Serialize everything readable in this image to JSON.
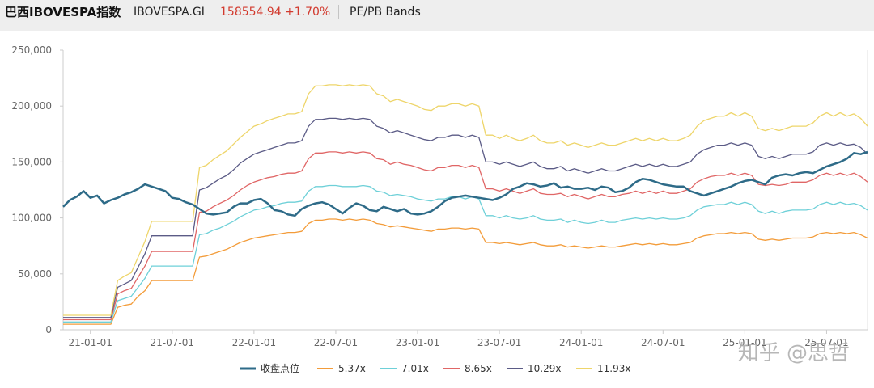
{
  "header": {
    "name": "巴西IBOVESPA指数",
    "code": "IBOVESPA.GI",
    "price": "158554.94",
    "change": "+1.70%",
    "bands_label": "PE/PB Bands"
  },
  "watermark": "知乎 @思哲",
  "chart_data": {
    "type": "line",
    "title": "PE/PB Bands",
    "ylim": [
      0,
      250000
    ],
    "yticks": [
      0,
      50000,
      100000,
      150000,
      200000,
      250000
    ],
    "ytick_labels": [
      "0",
      "50,000",
      "100,000",
      "150,000",
      "200,000",
      "250,000"
    ],
    "xlim": [
      0,
      59
    ],
    "x_unit": "months since 2020-11",
    "xticks": [
      {
        "x": 2,
        "label": "21-01-01"
      },
      {
        "x": 8,
        "label": "21-07-01"
      },
      {
        "x": 14,
        "label": "22-01-01"
      },
      {
        "x": 20,
        "label": "22-07-01"
      },
      {
        "x": 26,
        "label": "23-01-01"
      },
      {
        "x": 32,
        "label": "23-07-01"
      },
      {
        "x": 38,
        "label": "24-01-01"
      },
      {
        "x": 44,
        "label": "24-07-01"
      },
      {
        "x": 50,
        "label": "25-01-01"
      },
      {
        "x": 56,
        "label": "25-07-01"
      }
    ],
    "x": [
      0,
      0.5,
      1,
      1.5,
      2,
      2.5,
      3,
      3.5,
      4,
      4.5,
      5,
      5.5,
      6,
      6.5,
      7,
      7.5,
      8,
      8.5,
      9,
      9.5,
      10,
      10.5,
      11,
      11.5,
      12,
      12.5,
      13,
      13.5,
      14,
      14.5,
      15,
      15.5,
      16,
      16.5,
      17,
      17.5,
      18,
      18.5,
      19,
      19.5,
      20,
      20.5,
      21,
      21.5,
      22,
      22.5,
      23,
      23.5,
      24,
      24.5,
      25,
      25.5,
      26,
      26.5,
      27,
      27.5,
      28,
      28.5,
      29,
      29.5,
      30,
      30.5,
      31,
      31.5,
      32,
      32.5,
      33,
      33.5,
      34,
      34.5,
      35,
      35.5,
      36,
      36.5,
      37,
      37.5,
      38,
      38.5,
      39,
      39.5,
      40,
      40.5,
      41,
      41.5,
      42,
      42.5,
      43,
      43.5,
      44,
      44.5,
      45,
      45.5,
      46,
      46.5,
      47,
      47.5,
      48,
      48.5,
      49,
      49.5,
      50,
      50.5,
      51,
      51.5,
      52,
      52.5,
      53,
      53.5,
      54,
      54.5,
      55,
      55.5,
      56,
      56.5,
      57,
      57.5,
      58,
      58.5,
      59
    ],
    "series": [
      {
        "name": "收盘点位",
        "color": "#2e6b88",
        "width": 2.5,
        "values": [
          110000,
          116000,
          119000,
          124000,
          118000,
          120000,
          113000,
          116000,
          118000,
          121000,
          123000,
          126000,
          130000,
          128000,
          126000,
          124000,
          118000,
          117000,
          114000,
          112000,
          108000,
          104000,
          103000,
          104000,
          105000,
          110000,
          113000,
          113000,
          116000,
          117000,
          113000,
          107000,
          106000,
          103000,
          102000,
          108000,
          111000,
          113000,
          114000,
          112000,
          108000,
          104000,
          109000,
          113000,
          111000,
          107000,
          106000,
          110000,
          108000,
          106000,
          108000,
          104000,
          103000,
          104000,
          106000,
          110000,
          115000,
          118000,
          119000,
          120000,
          119000,
          118000,
          117000,
          116000,
          118000,
          121000,
          126000,
          128000,
          131000,
          130000,
          128000,
          129000,
          131000,
          127000,
          128000,
          126000,
          126000,
          127000,
          125000,
          128000,
          127000,
          123000,
          124000,
          127000,
          132000,
          135000,
          134000,
          132000,
          130000,
          129000,
          128000,
          128000,
          124000,
          122000,
          120000,
          122000,
          124000,
          126000,
          128000,
          131000,
          133000,
          134000,
          132000,
          130000,
          136000,
          138000,
          139000,
          138000,
          140000,
          141000,
          140000,
          143000,
          146000,
          148000,
          150000,
          153000,
          158000,
          157000,
          159000
        ]
      },
      {
        "name": "5.37x",
        "color": "#f39c3a",
        "width": 1.3,
        "values": [
          5000,
          5000,
          5000,
          5000,
          5000,
          5000,
          5000,
          5000,
          20000,
          22000,
          23000,
          30000,
          35000,
          44000,
          44000,
          44000,
          44000,
          44000,
          44000,
          44000,
          65000,
          66000,
          68000,
          70000,
          72000,
          75000,
          78000,
          80000,
          82000,
          83000,
          84000,
          85000,
          86000,
          87000,
          87000,
          88000,
          95000,
          98000,
          98000,
          99000,
          99000,
          98000,
          99000,
          98000,
          99000,
          98000,
          95000,
          94000,
          92000,
          93000,
          92000,
          91000,
          90000,
          89000,
          88000,
          90000,
          90000,
          91000,
          91000,
          90000,
          91000,
          90000,
          78000,
          78000,
          77000,
          78000,
          77000,
          76000,
          77000,
          78000,
          76000,
          75000,
          75000,
          76000,
          74000,
          75000,
          74000,
          73000,
          74000,
          75000,
          74000,
          74000,
          75000,
          76000,
          77000,
          76000,
          77000,
          76000,
          77000,
          76000,
          76000,
          77000,
          78000,
          82000,
          84000,
          85000,
          86000,
          86000,
          87000,
          86000,
          87000,
          86000,
          81000,
          80000,
          81000,
          80000,
          81000,
          82000,
          82000,
          82000,
          83000,
          86000,
          87000,
          86000,
          87000,
          86000,
          87000,
          85000,
          82000
        ]
      },
      {
        "name": "7.01x",
        "color": "#6ed0d8",
        "width": 1.3,
        "values": [
          7000,
          7000,
          7000,
          7000,
          7000,
          7000,
          7000,
          7000,
          26000,
          28000,
          30000,
          38000,
          46000,
          57000,
          57000,
          57000,
          57000,
          57000,
          57000,
          57000,
          85000,
          86000,
          89000,
          91000,
          94000,
          97000,
          101000,
          104000,
          107000,
          108000,
          110000,
          111000,
          113000,
          114000,
          114000,
          115000,
          124000,
          128000,
          128000,
          129000,
          129000,
          128000,
          128000,
          128000,
          129000,
          128000,
          124000,
          123000,
          120000,
          121000,
          120000,
          119000,
          117000,
          116000,
          115000,
          117000,
          117000,
          119000,
          119000,
          117000,
          119000,
          117000,
          102000,
          102000,
          100000,
          102000,
          100000,
          99000,
          100000,
          102000,
          99000,
          98000,
          98000,
          99000,
          96000,
          98000,
          96000,
          95000,
          96000,
          98000,
          96000,
          96000,
          98000,
          99000,
          100000,
          99000,
          100000,
          99000,
          100000,
          99000,
          99000,
          100000,
          102000,
          107000,
          110000,
          111000,
          112000,
          112000,
          114000,
          112000,
          114000,
          112000,
          106000,
          104000,
          106000,
          104000,
          106000,
          107000,
          107000,
          107000,
          108000,
          112000,
          114000,
          112000,
          114000,
          112000,
          113000,
          111000,
          107000
        ]
      },
      {
        "name": "8.65x",
        "color": "#e06666",
        "width": 1.3,
        "values": [
          9000,
          9000,
          9000,
          9000,
          9000,
          9000,
          9000,
          9000,
          32000,
          35000,
          37000,
          47000,
          57000,
          70000,
          70000,
          70000,
          70000,
          70000,
          70000,
          70000,
          105000,
          106000,
          110000,
          113000,
          116000,
          120000,
          125000,
          129000,
          132000,
          134000,
          136000,
          137000,
          139000,
          140000,
          140000,
          142000,
          153000,
          158000,
          158000,
          159000,
          159000,
          158000,
          159000,
          158000,
          159000,
          158000,
          153000,
          152000,
          148000,
          150000,
          148000,
          147000,
          145000,
          143000,
          142000,
          145000,
          145000,
          147000,
          147000,
          145000,
          147000,
          145000,
          126000,
          126000,
          124000,
          126000,
          124000,
          122000,
          124000,
          126000,
          122000,
          121000,
          121000,
          122000,
          119000,
          121000,
          119000,
          117000,
          119000,
          121000,
          119000,
          119000,
          121000,
          122000,
          124000,
          122000,
          124000,
          122000,
          124000,
          122000,
          122000,
          124000,
          126000,
          132000,
          135000,
          137000,
          138000,
          138000,
          140000,
          138000,
          140000,
          138000,
          130000,
          129000,
          130000,
          129000,
          130000,
          132000,
          132000,
          132000,
          134000,
          138000,
          140000,
          138000,
          140000,
          138000,
          140000,
          137000,
          132000
        ]
      },
      {
        "name": "10.29x",
        "color": "#5b5b86",
        "width": 1.3,
        "values": [
          11000,
          11000,
          11000,
          11000,
          11000,
          11000,
          11000,
          11000,
          38000,
          41000,
          44000,
          56000,
          68000,
          84000,
          84000,
          84000,
          84000,
          84000,
          84000,
          84000,
          125000,
          127000,
          131000,
          135000,
          138000,
          143000,
          149000,
          153000,
          157000,
          159000,
          161000,
          163000,
          165000,
          167000,
          167000,
          169000,
          182000,
          188000,
          188000,
          189000,
          189000,
          188000,
          189000,
          188000,
          189000,
          188000,
          182000,
          180000,
          176000,
          178000,
          176000,
          174000,
          172000,
          170000,
          169000,
          172000,
          172000,
          174000,
          174000,
          172000,
          174000,
          172000,
          150000,
          150000,
          148000,
          150000,
          148000,
          146000,
          148000,
          150000,
          146000,
          144000,
          144000,
          146000,
          142000,
          144000,
          142000,
          140000,
          142000,
          144000,
          142000,
          142000,
          144000,
          146000,
          148000,
          146000,
          148000,
          146000,
          148000,
          146000,
          146000,
          148000,
          150000,
          157000,
          161000,
          163000,
          165000,
          165000,
          167000,
          165000,
          167000,
          165000,
          155000,
          153000,
          155000,
          153000,
          155000,
          157000,
          157000,
          157000,
          159000,
          165000,
          167000,
          165000,
          167000,
          165000,
          166000,
          163000,
          157000
        ]
      },
      {
        "name": "11.93x",
        "color": "#eed56a",
        "width": 1.3,
        "values": [
          13000,
          13000,
          13000,
          13000,
          13000,
          13000,
          13000,
          13000,
          44000,
          48000,
          51000,
          65000,
          79000,
          97000,
          97000,
          97000,
          97000,
          97000,
          97000,
          97000,
          145000,
          147000,
          152000,
          156000,
          160000,
          166000,
          172000,
          177000,
          182000,
          184000,
          187000,
          189000,
          191000,
          193000,
          193000,
          195000,
          211000,
          218000,
          218000,
          219000,
          219000,
          218000,
          219000,
          218000,
          219000,
          218000,
          211000,
          209000,
          204000,
          206000,
          204000,
          202000,
          200000,
          197000,
          196000,
          200000,
          200000,
          202000,
          202000,
          200000,
          202000,
          200000,
          174000,
          174000,
          171000,
          174000,
          171000,
          169000,
          171000,
          174000,
          169000,
          167000,
          167000,
          169000,
          165000,
          167000,
          165000,
          163000,
          165000,
          167000,
          165000,
          165000,
          167000,
          169000,
          171000,
          169000,
          171000,
          169000,
          171000,
          169000,
          169000,
          171000,
          174000,
          182000,
          187000,
          189000,
          191000,
          191000,
          194000,
          191000,
          194000,
          191000,
          180000,
          178000,
          180000,
          178000,
          180000,
          182000,
          182000,
          182000,
          185000,
          191000,
          194000,
          191000,
          194000,
          191000,
          193000,
          189000,
          182000
        ]
      }
    ],
    "legend_position": "bottom-center"
  }
}
